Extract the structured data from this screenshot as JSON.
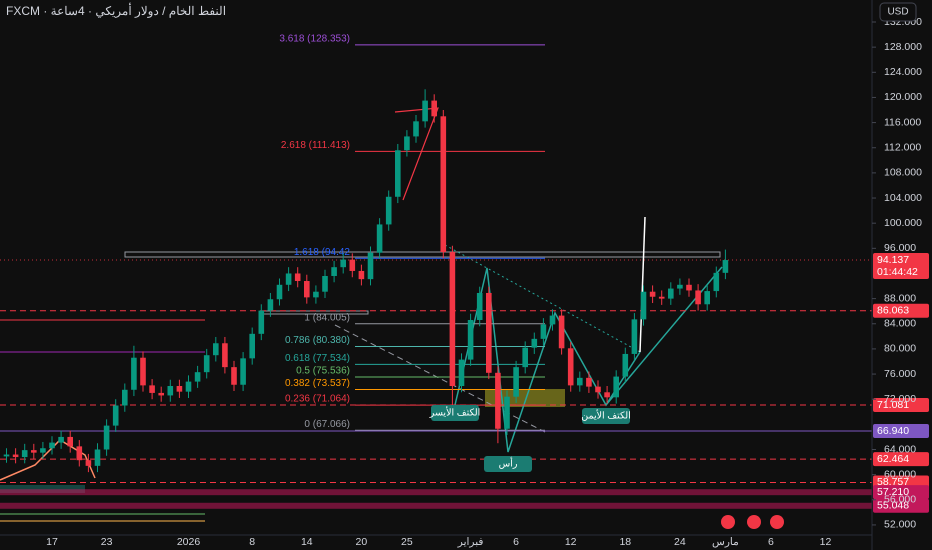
{
  "chart_data": {
    "type": "candlestick",
    "title": "FXCM · النفط الخام / دولار أمريكي · 4ساعة",
    "currency": "USD",
    "categories": [
      null,
      null,
      null,
      null,
      null,
      "17",
      null,
      null,
      null,
      null,
      null,
      "23",
      null,
      null,
      null,
      null,
      null,
      null,
      null,
      null,
      "2026",
      null,
      null,
      null,
      null,
      null,
      null,
      "8",
      null,
      null,
      null,
      null,
      null,
      "14",
      null,
      null,
      null,
      null,
      null,
      "20",
      null,
      null,
      null,
      null,
      "25",
      null,
      null,
      null,
      null,
      null,
      null,
      "فبراير",
      null,
      null,
      null,
      null,
      "6",
      null,
      null,
      null,
      null,
      null,
      "12",
      null,
      null,
      null,
      null,
      null,
      "18",
      null,
      null,
      null,
      null,
      null,
      "24",
      null,
      null,
      null,
      null,
      "مارس",
      null,
      null,
      null,
      null,
      "6",
      null,
      null,
      null,
      null,
      null,
      "12"
    ],
    "open": [
      62.9,
      63.2,
      62.8,
      63.9,
      63.5,
      64.2,
      65.1,
      66.0,
      64.5,
      62.3,
      61.4,
      64.0,
      67.8,
      71.0,
      73.5,
      78.6,
      74.2,
      73.0,
      72.6,
      74.1,
      73.2,
      74.8,
      76.3,
      79.0,
      80.9,
      77.1,
      74.3,
      78.5,
      82.4,
      86.1,
      87.9,
      90.2,
      92.0,
      90.8,
      88.2,
      89.1,
      91.6,
      93.0,
      94.2,
      92.4,
      91.1,
      95.3,
      99.8,
      104.2,
      111.6,
      113.8,
      116.2,
      119.5,
      117.0,
      95.4,
      74.1,
      78.3,
      84.6,
      88.9,
      76.2,
      67.3,
      72.4,
      77.1,
      80.2,
      81.6,
      83.9,
      85.3,
      80.1,
      74.2,
      75.4,
      74.0,
      73.1,
      72.3,
      75.6,
      79.2,
      84.7,
      89.1,
      88.3,
      88.0,
      89.6,
      90.2,
      89.3,
      87.1,
      89.2,
      92.1,
      null,
      null,
      null,
      null,
      null,
      null,
      null,
      null,
      null,
      null,
      null
    ],
    "high": [
      64.2,
      64.2,
      64.9,
      64.9,
      65.2,
      66.1,
      67.0,
      67.0,
      65.5,
      63.3,
      65.0,
      68.8,
      72.0,
      74.5,
      80.5,
      79.6,
      75.2,
      74.0,
      75.1,
      75.1,
      75.8,
      77.3,
      80.0,
      81.9,
      81.9,
      78.1,
      79.5,
      83.4,
      87.1,
      88.9,
      91.2,
      93.0,
      93.0,
      91.8,
      90.1,
      92.6,
      94.0,
      95.2,
      95.2,
      93.4,
      96.3,
      100.8,
      105.2,
      112.6,
      114.8,
      117.2,
      121.3,
      120.5,
      118.0,
      96.4,
      79.3,
      85.6,
      89.9,
      89.9,
      77.2,
      73.4,
      78.1,
      81.2,
      82.6,
      84.9,
      86.3,
      86.3,
      81.1,
      76.4,
      76.4,
      75.0,
      74.1,
      76.6,
      80.2,
      85.7,
      90.1,
      90.1,
      89.3,
      90.6,
      91.2,
      91.2,
      90.3,
      90.2,
      93.1,
      95.8,
      null,
      null,
      null,
      null,
      null,
      null,
      null,
      null,
      null,
      null,
      null
    ],
    "low": [
      61.9,
      61.8,
      61.8,
      62.5,
      62.5,
      63.2,
      64.1,
      63.5,
      61.3,
      60.4,
      60.4,
      63.0,
      66.8,
      70.0,
      72.5,
      73.2,
      72.0,
      71.6,
      71.6,
      72.2,
      72.2,
      73.8,
      75.3,
      78.0,
      76.1,
      73.3,
      73.3,
      77.5,
      81.4,
      85.1,
      86.9,
      89.2,
      89.8,
      87.2,
      87.2,
      88.1,
      90.6,
      92.0,
      91.4,
      90.1,
      90.1,
      94.3,
      98.8,
      103.2,
      110.6,
      112.8,
      115.2,
      116.0,
      94.4,
      71.0,
      73.1,
      77.3,
      83.6,
      75.2,
      65.0,
      66.3,
      71.4,
      76.1,
      79.2,
      80.6,
      82.9,
      79.1,
      73.2,
      73.2,
      73.0,
      72.1,
      71.3,
      71.3,
      74.6,
      78.2,
      83.7,
      87.3,
      87.0,
      87.0,
      88.6,
      88.3,
      86.1,
      86.1,
      88.2,
      91.1,
      null,
      null,
      null,
      null,
      null,
      null,
      null,
      null,
      null,
      null,
      null
    ],
    "close": [
      63.2,
      62.8,
      63.9,
      63.5,
      64.2,
      65.1,
      66.0,
      64.5,
      62.3,
      61.4,
      64.0,
      67.8,
      71.0,
      73.5,
      78.6,
      74.2,
      73.0,
      72.6,
      74.1,
      73.2,
      74.8,
      76.3,
      79.0,
      80.9,
      77.1,
      74.3,
      78.5,
      82.4,
      86.1,
      87.9,
      90.2,
      92.0,
      90.8,
      88.2,
      89.1,
      91.6,
      93.0,
      94.2,
      92.4,
      91.1,
      95.3,
      99.8,
      104.2,
      111.6,
      113.8,
      116.2,
      119.5,
      117.0,
      95.4,
      74.1,
      78.3,
      84.6,
      88.9,
      76.2,
      67.3,
      72.4,
      77.1,
      80.2,
      81.6,
      83.9,
      85.3,
      80.1,
      74.2,
      75.4,
      74.0,
      73.1,
      72.3,
      75.6,
      79.2,
      84.7,
      89.1,
      88.3,
      88.0,
      89.6,
      90.2,
      89.3,
      87.1,
      89.2,
      92.1,
      94.137,
      null,
      null,
      null,
      null,
      null,
      null,
      null,
      null,
      null,
      null,
      null
    ],
    "up_color": "#089981",
    "down_color": "#f23645",
    "ylim": [
      50.4,
      135.5
    ],
    "yticks": [
      {
        "value": 52,
        "label": "52.000"
      },
      {
        "value": 56,
        "label": "56.000"
      },
      {
        "value": 60,
        "label": "60.000"
      },
      {
        "value": 64,
        "label": "64.000"
      },
      {
        "value": 72,
        "label": "72.000"
      },
      {
        "value": 76,
        "label": "76.000"
      },
      {
        "value": 80,
        "label": "80.000"
      },
      {
        "value": 84,
        "label": "84.000"
      },
      {
        "value": 88,
        "label": "88.000"
      },
      {
        "value": 96,
        "label": "96.000"
      },
      {
        "value": 100,
        "label": "100.000"
      },
      {
        "value": 104,
        "label": "104.000"
      },
      {
        "value": 108,
        "label": "108.000"
      },
      {
        "value": 112,
        "label": "112.000"
      },
      {
        "value": 116,
        "label": "116.000"
      },
      {
        "value": 120,
        "label": "120.000"
      },
      {
        "value": 124,
        "label": "124.000"
      },
      {
        "value": 128,
        "label": "128.000"
      },
      {
        "value": 132,
        "label": "132.000"
      }
    ],
    "grid": false,
    "last_price": {
      "value": 94.137,
      "label": "94.137",
      "countdown": "01:44:42",
      "color": "#f23645"
    },
    "levels": [
      {
        "value": 86.063,
        "label": "86.063",
        "color": "#f23645",
        "style": "dashed"
      },
      {
        "value": 71.081,
        "label": "71.081",
        "color": "#f23645",
        "style": "dashed"
      },
      {
        "value": 66.94,
        "label": "66.940",
        "color": "#7e57c2",
        "style": "solid"
      },
      {
        "value": 62.464,
        "label": "62.464",
        "color": "#f23645",
        "style": "dashed"
      },
      {
        "value": 58.757,
        "label": "58.757",
        "color": "#f23645",
        "style": "dashed"
      },
      {
        "value": 57.21,
        "label": "57.210",
        "color": "#c2185b",
        "style": "band"
      },
      {
        "value": 55.048,
        "label": "55.048",
        "color": "#c2185b",
        "style": "band"
      }
    ],
    "fib": [
      {
        "value": 128.353,
        "label": "3.618 (128.353)",
        "color": "#9c4fd6"
      },
      {
        "value": 111.413,
        "label": "2.618 (111.413)",
        "color": "#f23645"
      },
      {
        "value": 94.42,
        "label": "1.618 (94.42",
        "color": "#2962ff"
      },
      {
        "value": 84.005,
        "label": "1 (84.005)",
        "color": "#9598a1"
      },
      {
        "value": 80.38,
        "label": "0.786 (80.380)",
        "color": "#4db6ac"
      },
      {
        "value": 77.534,
        "label": "0.618 (77.534)",
        "color": "#26a69a"
      },
      {
        "value": 75.536,
        "label": "0.5 (75.536)",
        "color": "#66bb6a"
      },
      {
        "value": 73.537,
        "label": "0.382 (73.537)",
        "color": "#ff9800"
      },
      {
        "value": 71.064,
        "label": "0.236 (71.064)",
        "color": "#f23645"
      },
      {
        "value": 67.066,
        "label": "0 (67.066)",
        "color": "#9598a1"
      }
    ],
    "annotations": [
      "الكتف الأيسر",
      "رأس",
      "الكتف الأيمن"
    ]
  }
}
